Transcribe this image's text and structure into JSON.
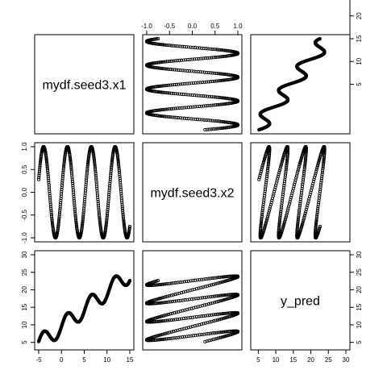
{
  "chart_data": {
    "type": "scatter",
    "variables": [
      "mydf.seed3.x1",
      "mydf.seed3.x2",
      "y_pred"
    ],
    "ranges": {
      "x1": [
        -5,
        15
      ],
      "x2": [
        -1,
        1
      ],
      "y": [
        4,
        30
      ]
    },
    "axis_ticks": {
      "x1": [
        -5,
        0,
        5,
        10,
        15
      ],
      "x2": [
        -1.0,
        -0.5,
        0.0,
        0.5,
        1.0
      ],
      "y": [
        5,
        10,
        15,
        20,
        25,
        30
      ]
    },
    "tick_labels": {
      "x1": [
        "-5",
        "0",
        "5",
        "10",
        "15"
      ],
      "x2": [
        "-1.0",
        "-0.5",
        "0.0",
        "0.5",
        "1.0"
      ],
      "y": [
        "5",
        "10",
        "15",
        "20",
        "25",
        "30"
      ]
    },
    "relationships": {
      "x2_vs_x1": "x2 = sin(1.2 * x1)",
      "y_vs_x1": "y = x1 + 2.5*x2 + 9.5 approx",
      "x1_range_sampled": [
        -5,
        15
      ],
      "sample_points": 500
    },
    "marker": "open-circle",
    "grid": false,
    "legend": "none"
  }
}
